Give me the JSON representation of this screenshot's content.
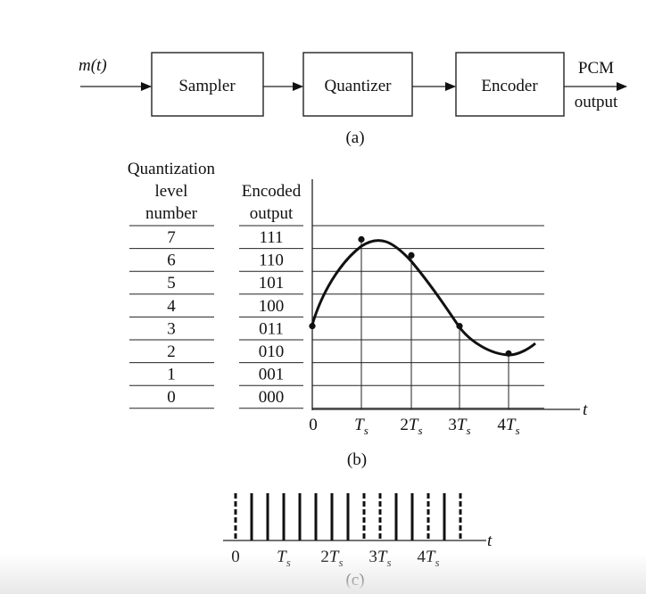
{
  "block_diagram": {
    "input_label": "m(t)",
    "blocks": [
      "Sampler",
      "Quantizer",
      "Encoder"
    ],
    "output_label_1": "PCM",
    "output_label_2": "output",
    "caption": "(a)"
  },
  "quantization_table": {
    "header_level_1": "Quantization",
    "header_level_2": "level",
    "header_level_3": "number",
    "header_code_1": "Encoded",
    "header_code_2": "output",
    "levels": [
      "7",
      "6",
      "5",
      "4",
      "3",
      "2",
      "1",
      "0"
    ],
    "codes": [
      "111",
      "110",
      "101",
      "100",
      "011",
      "010",
      "001",
      "000"
    ]
  },
  "sampling_plot": {
    "x_axis_label": "t",
    "x_ticks": [
      "0",
      "T",
      "2T",
      "3T",
      "4T"
    ],
    "subscript": "s",
    "sample_levels": [
      3.6,
      7.4,
      6.7,
      3.6,
      2.4
    ],
    "caption": "(b)"
  },
  "pulse_plot": {
    "x_axis_label": "t",
    "x_ticks": [
      "0",
      "T",
      "2T",
      "3T",
      "4T"
    ],
    "subscript": "s",
    "caption": "(c)"
  }
}
